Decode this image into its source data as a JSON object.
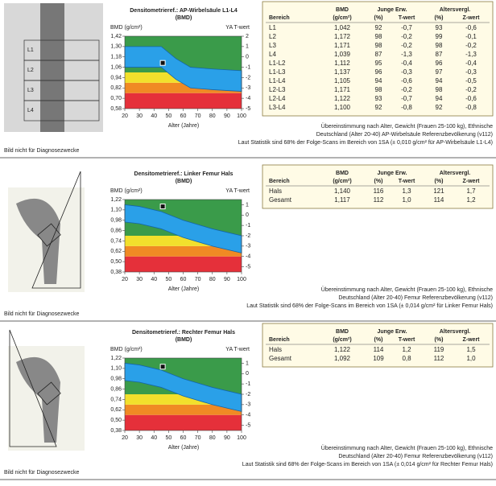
{
  "sections": [
    {
      "image": {
        "caption": "Bild nicht für Diagnosezwecke",
        "labels": [
          "L1",
          "L2",
          "L3",
          "L4"
        ]
      },
      "chart": {
        "title": "Densitometrieref.: AP-Wirbelsäule L1-L4",
        "subtitle": "(BMD)",
        "ylabel": "BMD (g/cm²)",
        "y2label": "YA T-wert",
        "xlabel": "Alter (Jahre)",
        "xlim": [
          20,
          100
        ],
        "xticks": [
          20,
          30,
          40,
          50,
          60,
          70,
          80,
          90,
          100
        ],
        "ylim": [
          0.58,
          1.42
        ],
        "yticks": [
          {
            "value": 1.42,
            "label": "1,42"
          },
          {
            "value": 1.3,
            "label": "1,30"
          },
          {
            "value": 1.18,
            "label": "1,18"
          },
          {
            "value": 1.06,
            "label": "1,06"
          },
          {
            "value": 0.94,
            "label": "0,94"
          },
          {
            "value": 0.82,
            "label": "0,82"
          },
          {
            "value": 0.7,
            "label": "0,70"
          },
          {
            "value": 0.58,
            "label": "0,58"
          }
        ],
        "y2lim": [
          -5,
          2
        ],
        "y2ticks": [
          2,
          1,
          0,
          -1,
          -2,
          -3,
          -4,
          -5
        ],
        "bands": [
          {
            "color": "#e5303a",
            "from": 0.58,
            "to": 0.76
          },
          {
            "color": "#f08a24",
            "from": 0.76,
            "to": 0.88
          },
          {
            "color": "#f2e02c",
            "from": 0.88,
            "to": 1.0
          },
          {
            "color": "#3a9b4a",
            "from": 1.0,
            "to": 1.42
          }
        ],
        "reference": {
          "color": "#2aa0e8",
          "x": [
            20,
            40,
            45,
            55,
            65,
            80,
            100
          ],
          "upper": [
            1.3,
            1.3,
            1.3,
            1.16,
            1.06,
            1.04,
            1.02
          ],
          "lower": [
            1.06,
            1.06,
            1.06,
            0.92,
            0.82,
            0.8,
            0.78
          ]
        },
        "patient": {
          "x": 46,
          "y": 1.11
        }
      },
      "table": {
        "groups": [
          "BMD",
          "Junge Erw.",
          "Altersvergl."
        ],
        "columns": [
          "Bereich",
          "(g/cm²)",
          "(%)",
          "T-wert",
          "(%)",
          "Z-wert"
        ],
        "rows": [
          [
            "L1",
            "1,042",
            "92",
            "-0,7",
            "93",
            "-0,6"
          ],
          [
            "L2",
            "1,172",
            "98",
            "-0,2",
            "99",
            "-0,1"
          ],
          [
            "L3",
            "1,171",
            "98",
            "-0,2",
            "98",
            "-0,2"
          ],
          [
            "L4",
            "1,039",
            "87",
            "-1,3",
            "87",
            "-1,3"
          ],
          [
            "L1-L2",
            "1,112",
            "95",
            "-0,4",
            "96",
            "-0,4"
          ],
          [
            "L1-L3",
            "1,137",
            "96",
            "-0,3",
            "97",
            "-0,3"
          ],
          [
            "L1-L4",
            "1,105",
            "94",
            "-0,6",
            "94",
            "-0,5"
          ],
          [
            "L2-L3",
            "1,171",
            "98",
            "-0,2",
            "98",
            "-0,2"
          ],
          [
            "L2-L4",
            "1,122",
            "93",
            "-0,7",
            "94",
            "-0,6"
          ],
          [
            "L3-L4",
            "1,100",
            "92",
            "-0,8",
            "92",
            "-0,8"
          ]
        ]
      },
      "notes": [
        "Übereinstimmung nach Alter, Gewicht (Frauen 25-100 kg), Ethnische",
        "Deutschland (Alter 20-40) AP-Wirbelsäule Referenzbevölkerung (v112)",
        "Laut Statistik sind 68% der Folge-Scans im Bereich von 1SA (± 0,010 g/cm² für AP-Wirbelsäule L1-L4)"
      ]
    },
    {
      "image": {
        "caption": "Bild nicht für Diagnosezwecke"
      },
      "chart": {
        "title": "Densitometrieref.: Linker Femur Hals",
        "subtitle": "(BMD)",
        "ylabel": "BMD (g/cm²)",
        "y2label": "YA T-wert",
        "xlabel": "Alter (Jahre)",
        "xlim": [
          20,
          100
        ],
        "xticks": [
          20,
          30,
          40,
          50,
          60,
          70,
          80,
          90,
          100
        ],
        "ylim": [
          0.38,
          1.22
        ],
        "yticks": [
          {
            "value": 1.22,
            "label": "1,22"
          },
          {
            "value": 1.1,
            "label": "1,10"
          },
          {
            "value": 0.98,
            "label": "0,98"
          },
          {
            "value": 0.86,
            "label": "0,86"
          },
          {
            "value": 0.74,
            "label": "0,74"
          },
          {
            "value": 0.62,
            "label": "0,62"
          },
          {
            "value": 0.5,
            "label": "0,50"
          },
          {
            "value": 0.38,
            "label": "0,38"
          }
        ],
        "y2lim": [
          -5.5,
          1.5
        ],
        "y2ticks": [
          1,
          0,
          -1,
          -2,
          -3,
          -4,
          -5
        ],
        "bands": [
          {
            "color": "#e5303a",
            "from": 0.38,
            "to": 0.56
          },
          {
            "color": "#f08a24",
            "from": 0.56,
            "to": 0.68
          },
          {
            "color": "#f2e02c",
            "from": 0.68,
            "to": 0.8
          },
          {
            "color": "#3a9b4a",
            "from": 0.8,
            "to": 1.22
          }
        ],
        "reference": {
          "color": "#2aa0e8",
          "x": [
            20,
            30,
            45,
            60,
            80,
            100
          ],
          "upper": [
            1.16,
            1.14,
            1.08,
            0.98,
            0.88,
            0.8
          ],
          "lower": [
            0.96,
            0.94,
            0.88,
            0.78,
            0.68,
            0.6
          ]
        },
        "patient": {
          "x": 46,
          "y": 1.14
        }
      },
      "table": {
        "groups": [
          "BMD",
          "Junge Erw.",
          "Altersvergl."
        ],
        "columns": [
          "Bereich",
          "(g/cm²)",
          "(%)",
          "T-wert",
          "(%)",
          "Z-wert"
        ],
        "rows": [
          [
            "Hals",
            "1,140",
            "116",
            "1,3",
            "121",
            "1,7"
          ],
          [
            "Gesamt",
            "1,117",
            "112",
            "1,0",
            "114",
            "1,2"
          ]
        ]
      },
      "notes": [
        "Übereinstimmung nach Alter, Gewicht (Frauen 25-100 kg), Ethnische",
        "Deutschland (Alter 20-40) Femur Referenzbevölkerung (v112)",
        "Laut Statistik sind 68% der Folge-Scans im Bereich von 1SA (± 0,014 g/cm² für Linker Femur Hals)"
      ]
    },
    {
      "image": {
        "caption": "Bild nicht für Diagnosezwecke"
      },
      "chart": {
        "title": "Densitometrieref.: Rechter Femur Hals",
        "subtitle": "(BMD)",
        "ylabel": "BMD (g/cm²)",
        "y2label": "YA T-wert",
        "xlabel": "Alter (Jahre)",
        "xlim": [
          20,
          100
        ],
        "xticks": [
          20,
          30,
          40,
          50,
          60,
          70,
          80,
          90,
          100
        ],
        "ylim": [
          0.38,
          1.22
        ],
        "yticks": [
          {
            "value": 1.22,
            "label": "1,22"
          },
          {
            "value": 1.1,
            "label": "1,10"
          },
          {
            "value": 0.98,
            "label": "0,98"
          },
          {
            "value": 0.86,
            "label": "0,86"
          },
          {
            "value": 0.74,
            "label": "0,74"
          },
          {
            "value": 0.62,
            "label": "0,62"
          },
          {
            "value": 0.5,
            "label": "0,50"
          },
          {
            "value": 0.38,
            "label": "0,38"
          }
        ],
        "y2lim": [
          -5.5,
          1.5
        ],
        "y2ticks": [
          1,
          0,
          -1,
          -2,
          -3,
          -4,
          -5
        ],
        "bands": [
          {
            "color": "#e5303a",
            "from": 0.38,
            "to": 0.56
          },
          {
            "color": "#f08a24",
            "from": 0.56,
            "to": 0.68
          },
          {
            "color": "#f2e02c",
            "from": 0.68,
            "to": 0.8
          },
          {
            "color": "#3a9b4a",
            "from": 0.8,
            "to": 1.22
          }
        ],
        "reference": {
          "color": "#2aa0e8",
          "x": [
            20,
            30,
            45,
            60,
            80,
            100
          ],
          "upper": [
            1.16,
            1.14,
            1.08,
            0.98,
            0.88,
            0.8
          ],
          "lower": [
            0.96,
            0.94,
            0.88,
            0.78,
            0.68,
            0.6
          ]
        },
        "patient": {
          "x": 46,
          "y": 1.12
        }
      },
      "table": {
        "groups": [
          "BMD",
          "Junge Erw.",
          "Altersvergl."
        ],
        "columns": [
          "Bereich",
          "(g/cm²)",
          "(%)",
          "T-wert",
          "(%)",
          "Z-wert"
        ],
        "rows": [
          [
            "Hals",
            "1,122",
            "114",
            "1,2",
            "119",
            "1,5"
          ],
          [
            "Gesamt",
            "1,092",
            "109",
            "0,8",
            "112",
            "1,0"
          ]
        ]
      },
      "notes": [
        "Übereinstimmung nach Alter, Gewicht (Frauen 25-100 kg), Ethnische",
        "Deutschland (Alter 20-40) Femur Referenzbevölkerung (v112)",
        "Laut Statistik sind 68% der Folge-Scans im Bereich von 1SA (± 0,014 g/cm² für Rechter Femur Hals)"
      ]
    }
  ]
}
